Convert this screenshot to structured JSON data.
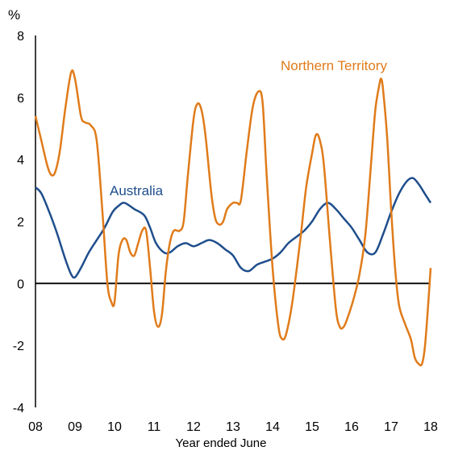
{
  "chart_data": {
    "type": "line",
    "title": "",
    "ylabel": "%",
    "xlabel": "Year ended June",
    "ylim": [
      -4,
      8
    ],
    "yticks": [
      -4,
      -2,
      0,
      2,
      4,
      6,
      8
    ],
    "xlim": [
      2008,
      2018
    ],
    "x_tick_values": [
      2008,
      2009,
      2010,
      2011,
      2012,
      2013,
      2014,
      2015,
      2016,
      2017,
      2018
    ],
    "x_tick_labels": [
      "08",
      "09",
      "10",
      "11",
      "12",
      "13",
      "14",
      "15",
      "16",
      "17",
      "18"
    ],
    "zero_line": true,
    "grid": false,
    "series": [
      {
        "name": "Australia",
        "color": "#1f4e8c",
        "points": [
          [
            2008.0,
            3.1
          ],
          [
            2008.15,
            2.9
          ],
          [
            2008.35,
            2.3
          ],
          [
            2008.55,
            1.6
          ],
          [
            2008.75,
            0.8
          ],
          [
            2008.9,
            0.3
          ],
          [
            2009.0,
            0.2
          ],
          [
            2009.15,
            0.5
          ],
          [
            2009.35,
            1.0
          ],
          [
            2009.55,
            1.4
          ],
          [
            2009.75,
            1.8
          ],
          [
            2009.95,
            2.3
          ],
          [
            2010.1,
            2.5
          ],
          [
            2010.25,
            2.6
          ],
          [
            2010.5,
            2.4
          ],
          [
            2010.75,
            2.2
          ],
          [
            2010.9,
            1.8
          ],
          [
            2011.05,
            1.3
          ],
          [
            2011.25,
            1.0
          ],
          [
            2011.4,
            1.0
          ],
          [
            2011.6,
            1.2
          ],
          [
            2011.8,
            1.3
          ],
          [
            2012.0,
            1.2
          ],
          [
            2012.2,
            1.3
          ],
          [
            2012.4,
            1.4
          ],
          [
            2012.6,
            1.3
          ],
          [
            2012.8,
            1.1
          ],
          [
            2013.0,
            0.9
          ],
          [
            2013.2,
            0.5
          ],
          [
            2013.4,
            0.4
          ],
          [
            2013.6,
            0.6
          ],
          [
            2013.8,
            0.7
          ],
          [
            2014.0,
            0.8
          ],
          [
            2014.2,
            1.0
          ],
          [
            2014.4,
            1.3
          ],
          [
            2014.6,
            1.5
          ],
          [
            2014.8,
            1.7
          ],
          [
            2015.0,
            2.0
          ],
          [
            2015.2,
            2.4
          ],
          [
            2015.4,
            2.6
          ],
          [
            2015.6,
            2.4
          ],
          [
            2015.8,
            2.1
          ],
          [
            2016.0,
            1.8
          ],
          [
            2016.2,
            1.4
          ],
          [
            2016.4,
            1.0
          ],
          [
            2016.6,
            1.0
          ],
          [
            2016.8,
            1.6
          ],
          [
            2017.0,
            2.3
          ],
          [
            2017.2,
            2.9
          ],
          [
            2017.4,
            3.3
          ],
          [
            2017.55,
            3.4
          ],
          [
            2017.7,
            3.2
          ],
          [
            2017.85,
            2.9
          ],
          [
            2018.0,
            2.6
          ]
        ]
      },
      {
        "name": "Northern Territory",
        "color": "#e07b1a",
        "points": [
          [
            2008.0,
            5.4
          ],
          [
            2008.15,
            4.6
          ],
          [
            2008.3,
            3.8
          ],
          [
            2008.4,
            3.5
          ],
          [
            2008.5,
            3.6
          ],
          [
            2008.62,
            4.3
          ],
          [
            2008.75,
            5.6
          ],
          [
            2008.9,
            6.8
          ],
          [
            2009.0,
            6.6
          ],
          [
            2009.15,
            5.4
          ],
          [
            2009.25,
            5.2
          ],
          [
            2009.4,
            5.1
          ],
          [
            2009.55,
            4.6
          ],
          [
            2009.7,
            2.2
          ],
          [
            2009.82,
            0.0
          ],
          [
            2009.92,
            -0.6
          ],
          [
            2010.0,
            -0.6
          ],
          [
            2010.1,
            0.9
          ],
          [
            2010.2,
            1.4
          ],
          [
            2010.3,
            1.4
          ],
          [
            2010.4,
            1.0
          ],
          [
            2010.5,
            0.9
          ],
          [
            2010.6,
            1.3
          ],
          [
            2010.7,
            1.7
          ],
          [
            2010.8,
            1.7
          ],
          [
            2010.9,
            0.5
          ],
          [
            2011.0,
            -0.9
          ],
          [
            2011.1,
            -1.4
          ],
          [
            2011.2,
            -1.0
          ],
          [
            2011.3,
            0.4
          ],
          [
            2011.4,
            1.3
          ],
          [
            2011.5,
            1.7
          ],
          [
            2011.65,
            1.7
          ],
          [
            2011.75,
            2.0
          ],
          [
            2011.85,
            3.4
          ],
          [
            2012.0,
            5.3
          ],
          [
            2012.1,
            5.8
          ],
          [
            2012.2,
            5.6
          ],
          [
            2012.3,
            4.8
          ],
          [
            2012.45,
            2.9
          ],
          [
            2012.55,
            2.1
          ],
          [
            2012.65,
            1.9
          ],
          [
            2012.75,
            2.0
          ],
          [
            2012.85,
            2.4
          ],
          [
            2013.0,
            2.6
          ],
          [
            2013.1,
            2.6
          ],
          [
            2013.2,
            2.7
          ],
          [
            2013.35,
            4.3
          ],
          [
            2013.5,
            5.7
          ],
          [
            2013.65,
            6.2
          ],
          [
            2013.75,
            5.8
          ],
          [
            2013.85,
            3.5
          ],
          [
            2014.0,
            0.5
          ],
          [
            2014.15,
            -1.4
          ],
          [
            2014.25,
            -1.8
          ],
          [
            2014.35,
            -1.6
          ],
          [
            2014.5,
            -0.6
          ],
          [
            2014.7,
            1.4
          ],
          [
            2014.85,
            3.1
          ],
          [
            2015.0,
            4.2
          ],
          [
            2015.1,
            4.8
          ],
          [
            2015.2,
            4.6
          ],
          [
            2015.3,
            3.8
          ],
          [
            2015.45,
            1.4
          ],
          [
            2015.6,
            -0.8
          ],
          [
            2015.7,
            -1.4
          ],
          [
            2015.8,
            -1.4
          ],
          [
            2015.9,
            -1.1
          ],
          [
            2016.05,
            -0.5
          ],
          [
            2016.2,
            0.3
          ],
          [
            2016.35,
            1.6
          ],
          [
            2016.5,
            4.0
          ],
          [
            2016.6,
            5.6
          ],
          [
            2016.7,
            6.4
          ],
          [
            2016.75,
            6.6
          ],
          [
            2016.8,
            6.2
          ],
          [
            2016.9,
            4.7
          ],
          [
            2017.0,
            2.4
          ],
          [
            2017.1,
            0.5
          ],
          [
            2017.2,
            -0.7
          ],
          [
            2017.35,
            -1.3
          ],
          [
            2017.5,
            -1.8
          ],
          [
            2017.6,
            -2.4
          ],
          [
            2017.7,
            -2.6
          ],
          [
            2017.78,
            -2.6
          ],
          [
            2017.85,
            -2.1
          ],
          [
            2017.92,
            -1.0
          ],
          [
            2018.0,
            0.5
          ]
        ]
      }
    ],
    "annotations": [
      {
        "text": "Australia",
        "series": "Australia"
      },
      {
        "text": "Northern  Territory",
        "series": "Northern Territory"
      }
    ]
  }
}
